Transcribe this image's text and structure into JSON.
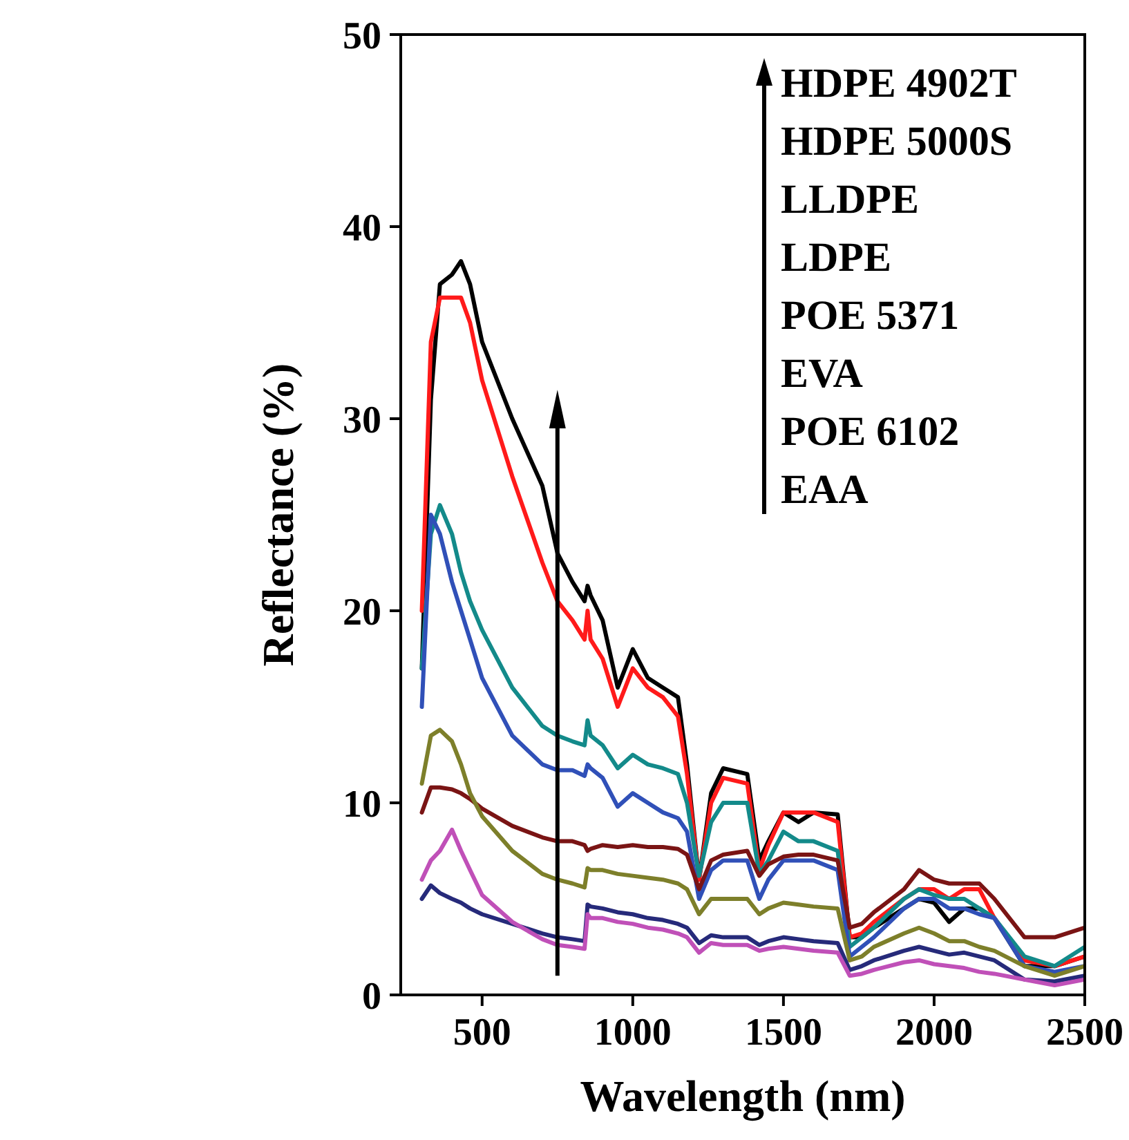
{
  "chart_data": {
    "type": "line",
    "xlabel": "Wavelength (nm)",
    "ylabel": "Reflectance (%)",
    "x": [
      300,
      330,
      360,
      400,
      430,
      460,
      500,
      600,
      700,
      750,
      800,
      840,
      850,
      860,
      900,
      950,
      1000,
      1050,
      1100,
      1150,
      1180,
      1220,
      1260,
      1300,
      1380,
      1420,
      1450,
      1500,
      1550,
      1600,
      1680,
      1720,
      1760,
      1800,
      1900,
      1950,
      2000,
      2050,
      2100,
      2150,
      2200,
      2300,
      2400,
      2500
    ],
    "xlim": [
      230,
      2500
    ],
    "xticks": [
      500,
      1000,
      1500,
      2000,
      2500
    ],
    "ylim": [
      0,
      50
    ],
    "yticks": [
      0,
      10,
      20,
      30,
      40,
      50
    ],
    "grid": false,
    "marker": "none",
    "line_style": "solid",
    "annotations": [
      "HDPE 4902T",
      "HDPE 5000S",
      "LLDPE",
      "LDPE",
      "POE 5371",
      "EVA",
      "POE 6102",
      "EAA"
    ],
    "series": [
      {
        "color": "#000000",
        "values": [
          17,
          31,
          37,
          37.5,
          38.2,
          37,
          34,
          30,
          26.5,
          23,
          21.5,
          20.5,
          21.3,
          20.8,
          19.5,
          16,
          18,
          16.5,
          16,
          15.5,
          12,
          6,
          10.5,
          11.8,
          11.5,
          7,
          8,
          9.5,
          9,
          9.5,
          9.4,
          3,
          3,
          3.5,
          4.5,
          5,
          4.8,
          3.8,
          4.5,
          4.5,
          4,
          1.5,
          1.5,
          2
        ]
      },
      {
        "color": "#ff1a1a",
        "values": [
          20,
          34,
          36.3,
          36.3,
          36.3,
          35,
          32,
          27,
          22.5,
          20.5,
          19.5,
          18.5,
          20,
          18.5,
          17.5,
          15,
          17,
          16,
          15.5,
          14.5,
          11.5,
          6,
          10,
          11.3,
          11,
          6.5,
          7.8,
          9.5,
          9.5,
          9.5,
          9,
          3,
          3.2,
          3.8,
          5,
          5.5,
          5.5,
          5,
          5.5,
          5.5,
          4,
          1.8,
          1.5,
          2
        ]
      },
      {
        "color": "#138a8a",
        "values": [
          17,
          24,
          25.5,
          24,
          22,
          20.5,
          19,
          16,
          14,
          13.5,
          13.2,
          13,
          14.3,
          13.5,
          13,
          11.8,
          12.5,
          12,
          11.8,
          11.5,
          10,
          6.2,
          9,
          10,
          10,
          6.3,
          7,
          8.5,
          8,
          8,
          7.5,
          2.5,
          3,
          3.5,
          5,
          5.5,
          5.2,
          5,
          5,
          4.5,
          4,
          2,
          1.5,
          2.5
        ]
      },
      {
        "color": "#3050b8",
        "values": [
          15,
          25,
          24,
          21.5,
          20,
          18.5,
          16.5,
          13.5,
          12,
          11.7,
          11.7,
          11.4,
          12,
          11.8,
          11.3,
          9.8,
          10.5,
          10,
          9.5,
          9.2,
          8.5,
          5,
          6.5,
          7,
          7,
          5,
          6,
          7,
          7,
          7,
          6.5,
          2,
          2.5,
          3,
          4.5,
          5,
          5,
          4.5,
          4.5,
          4.2,
          4,
          1.5,
          1.2,
          1.5
        ]
      },
      {
        "color": "#7a1414",
        "values": [
          9.5,
          10.8,
          10.8,
          10.7,
          10.5,
          10.2,
          9.7,
          8.8,
          8.2,
          8,
          8,
          7.8,
          7.5,
          7.6,
          7.8,
          7.7,
          7.8,
          7.7,
          7.7,
          7.6,
          7.3,
          5.5,
          7,
          7.3,
          7.5,
          6.2,
          6.8,
          7.2,
          7.3,
          7.3,
          7,
          3.5,
          3.7,
          4.3,
          5.5,
          6.5,
          6,
          5.8,
          5.8,
          5.8,
          5,
          3,
          3,
          3.5
        ]
      },
      {
        "color": "#7d7f2a",
        "values": [
          11,
          13.5,
          13.8,
          13.2,
          12,
          10.5,
          9.3,
          7.5,
          6.3,
          6,
          5.8,
          5.6,
          6.6,
          6.5,
          6.5,
          6.3,
          6.2,
          6.1,
          6,
          5.8,
          5.5,
          4.2,
          5,
          5,
          5,
          4.2,
          4.5,
          4.8,
          4.7,
          4.6,
          4.5,
          1.8,
          2,
          2.5,
          3.2,
          3.5,
          3.2,
          2.8,
          2.8,
          2.5,
          2.3,
          1.5,
          1,
          1.5
        ]
      },
      {
        "color": "#262a7a",
        "values": [
          5,
          5.7,
          5.3,
          5,
          4.8,
          4.5,
          4.2,
          3.7,
          3.2,
          3,
          2.9,
          2.8,
          4.7,
          4.6,
          4.5,
          4.3,
          4.2,
          4,
          3.9,
          3.7,
          3.5,
          2.7,
          3.1,
          3,
          3,
          2.6,
          2.8,
          3,
          2.9,
          2.8,
          2.7,
          1.3,
          1.5,
          1.8,
          2.3,
          2.5,
          2.3,
          2.1,
          2.2,
          2,
          1.8,
          0.8,
          0.7,
          1
        ]
      },
      {
        "color": "#c050b8",
        "values": [
          6,
          7,
          7.5,
          8.6,
          7.5,
          6.5,
          5.2,
          3.8,
          2.9,
          2.6,
          2.5,
          2.4,
          4.2,
          4,
          4,
          3.8,
          3.7,
          3.5,
          3.4,
          3.2,
          3,
          2.2,
          2.7,
          2.6,
          2.6,
          2.3,
          2.4,
          2.5,
          2.4,
          2.3,
          2.2,
          1,
          1.1,
          1.3,
          1.7,
          1.8,
          1.6,
          1.5,
          1.4,
          1.2,
          1.1,
          0.8,
          0.5,
          0.8
        ]
      }
    ]
  }
}
